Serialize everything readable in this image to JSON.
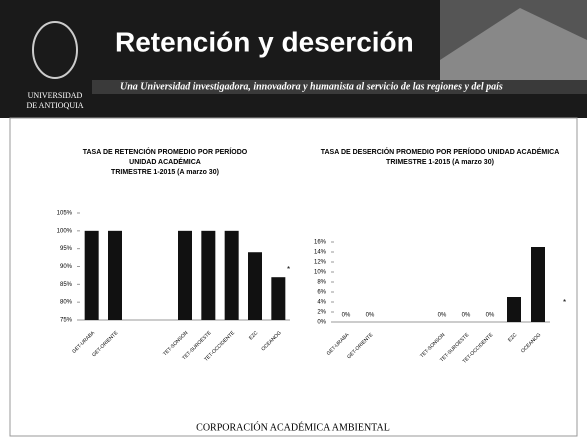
{
  "header": {
    "title": "Retención y deserción",
    "banner": "Una Universidad investigadora, innovadora y humanista al servicio de las regiones y del país",
    "logo": [
      "UNIVERSIDAD",
      "DE ANTIOQUIA"
    ]
  },
  "footer": "CORPORACIÓN ACADÉMICA AMBIENTAL",
  "chart_data": [
    {
      "type": "bar",
      "title": [
        "TASA DE RETENCIÓN PROMEDIO POR PERÍODO",
        "UNIDAD ACADÉMICA",
        "TRIMESTRE 1-2015 (A marzo 30)"
      ],
      "categories": [
        "GET-URABA",
        "GET-ORIENTE",
        null,
        null,
        "TET-SONSON",
        "TET-SUROESTE",
        "TET-OCCIDENTE",
        "EZC",
        "OCEANOG"
      ],
      "values": [
        100,
        100,
        null,
        null,
        100,
        100,
        100,
        94,
        87
      ],
      "color": "#111111",
      "ylim": [
        75,
        105
      ],
      "yticks": [
        {
          "value": 75,
          "label": "75%"
        },
        {
          "value": 80,
          "label": "80%"
        },
        {
          "value": 85,
          "label": "85%"
        },
        {
          "value": 90,
          "label": "90%"
        },
        {
          "value": 95,
          "label": "95%"
        },
        {
          "value": 100,
          "label": "100%"
        },
        {
          "value": 105,
          "label": "105%"
        }
      ],
      "note": "*"
    },
    {
      "type": "bar",
      "title": [
        "TASA DE DESERCIÓN PROMEDIO POR PERÍODO UNIDAD ACADÉMICA",
        "TRIMESTRE 1-2015 (A marzo 30)"
      ],
      "categories": [
        "GET-URABA",
        "GET-ORIENTE",
        null,
        null,
        "TET-SONSON",
        "TET-SUROESTE",
        "TET-OCCIDENTE",
        "EZC",
        "OCEANOG"
      ],
      "values": [
        0,
        0,
        null,
        null,
        0,
        0,
        0,
        5,
        15
      ],
      "value_labels": [
        "0%",
        "0%",
        null,
        null,
        "0%",
        "0%",
        "0%",
        null,
        null
      ],
      "color": "#111111",
      "ylim": [
        0,
        16
      ],
      "yticks": [
        {
          "value": 0,
          "label": "0%"
        },
        {
          "value": 2,
          "label": "2%"
        },
        {
          "value": 4,
          "label": "4%"
        },
        {
          "value": 6,
          "label": "6%"
        },
        {
          "value": 8,
          "label": "8%"
        },
        {
          "value": 10,
          "label": "10%"
        },
        {
          "value": 12,
          "label": "12%"
        },
        {
          "value": 14,
          "label": "14%"
        },
        {
          "value": 16,
          "label": "16%"
        }
      ],
      "note": "*"
    }
  ]
}
